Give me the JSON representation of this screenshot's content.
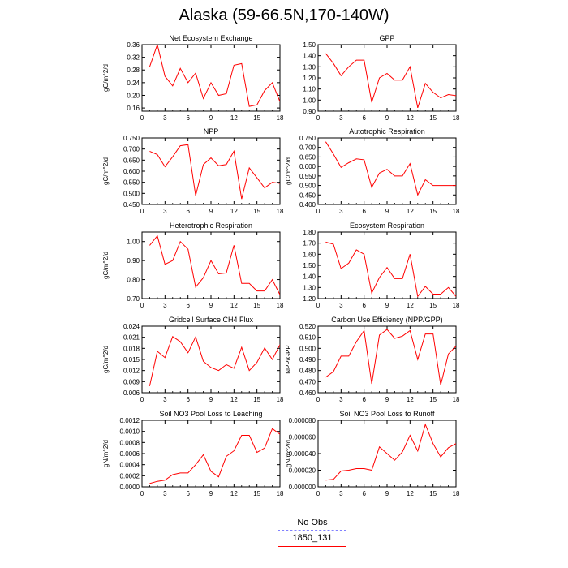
{
  "title": "Alaska (59-66.5N,170-140W)",
  "legend": [
    {
      "label": "No Obs",
      "color": "#8080ff",
      "style": "dashed"
    },
    {
      "label": "1850_131",
      "color": "#ff0000",
      "style": "solid"
    }
  ],
  "line_color": "#ff0000",
  "chart_data": [
    {
      "type": "line",
      "title": "Net Ecosystem Exchange",
      "ylabel": "gC/m^2/d",
      "xlim": [
        0,
        18
      ],
      "xticks": [
        0,
        3,
        6,
        9,
        12,
        15,
        18
      ],
      "ylim": [
        0.15,
        0.36
      ],
      "yticks": [
        "0.16",
        "0.20",
        "0.24",
        "0.28",
        "0.32",
        "0.36"
      ],
      "x": [
        1,
        2,
        3,
        4,
        5,
        6,
        7,
        8,
        9,
        10,
        11,
        12,
        13,
        14,
        15,
        16,
        17,
        18
      ],
      "values": [
        0.29,
        0.36,
        0.26,
        0.23,
        0.285,
        0.24,
        0.27,
        0.19,
        0.24,
        0.2,
        0.205,
        0.295,
        0.3,
        0.165,
        0.17,
        0.215,
        0.24,
        0.18
      ]
    },
    {
      "type": "line",
      "title": "GPP",
      "ylabel": "",
      "xlim": [
        0,
        18
      ],
      "xticks": [
        0,
        3,
        6,
        9,
        12,
        15,
        18
      ],
      "ylim": [
        0.9,
        1.5
      ],
      "yticks": [
        "0.90",
        "1.00",
        "1.10",
        "1.20",
        "1.30",
        "1.40",
        "1.50"
      ],
      "x": [
        1,
        2,
        3,
        4,
        5,
        6,
        7,
        8,
        9,
        10,
        11,
        12,
        13,
        14,
        15,
        16,
        17,
        18
      ],
      "values": [
        1.42,
        1.33,
        1.22,
        1.3,
        1.36,
        1.36,
        0.98,
        1.2,
        1.24,
        1.18,
        1.18,
        1.3,
        0.93,
        1.15,
        1.07,
        1.02,
        1.05,
        1.04
      ]
    },
    {
      "type": "line",
      "title": "NPP",
      "ylabel": "gC/m^2/d",
      "xlim": [
        0,
        18
      ],
      "xticks": [
        0,
        3,
        6,
        9,
        12,
        15,
        18
      ],
      "ylim": [
        0.45,
        0.75
      ],
      "yticks": [
        "0.450",
        "0.500",
        "0.550",
        "0.600",
        "0.650",
        "0.700",
        "0.750"
      ],
      "x": [
        1,
        2,
        3,
        4,
        5,
        6,
        7,
        8,
        9,
        10,
        11,
        12,
        13,
        14,
        15,
        16,
        17,
        18
      ],
      "values": [
        0.69,
        0.675,
        0.62,
        0.665,
        0.715,
        0.72,
        0.49,
        0.63,
        0.66,
        0.625,
        0.63,
        0.69,
        0.475,
        0.615,
        0.57,
        0.525,
        0.55,
        0.545
      ]
    },
    {
      "type": "line",
      "title": "Autotrophic Respiration",
      "ylabel": "gC/m^2/d",
      "xlim": [
        0,
        18
      ],
      "xticks": [
        0,
        3,
        6,
        9,
        12,
        15,
        18
      ],
      "ylim": [
        0.4,
        0.75
      ],
      "yticks": [
        "0.400",
        "0.450",
        "0.500",
        "0.550",
        "0.600",
        "0.650",
        "0.700",
        "0.750"
      ],
      "x": [
        1,
        2,
        3,
        4,
        5,
        6,
        7,
        8,
        9,
        10,
        11,
        12,
        13,
        14,
        15,
        16,
        17,
        18
      ],
      "values": [
        0.73,
        0.665,
        0.595,
        0.62,
        0.64,
        0.635,
        0.49,
        0.565,
        0.585,
        0.55,
        0.55,
        0.615,
        0.45,
        0.53,
        0.5,
        0.5,
        0.5,
        0.5
      ]
    },
    {
      "type": "line",
      "title": "Heterotrophic Respiration",
      "ylabel": "gC/m^2/d",
      "xlim": [
        0,
        18
      ],
      "xticks": [
        0,
        3,
        6,
        9,
        12,
        15,
        18
      ],
      "ylim": [
        0.7,
        1.05
      ],
      "yticks": [
        "0.70",
        "0.80",
        "0.90",
        "1.00"
      ],
      "x": [
        1,
        2,
        3,
        4,
        5,
        6,
        7,
        8,
        9,
        10,
        11,
        12,
        13,
        14,
        15,
        16,
        17,
        18
      ],
      "values": [
        0.98,
        1.03,
        0.88,
        0.9,
        1.0,
        0.96,
        0.76,
        0.81,
        0.9,
        0.83,
        0.835,
        0.98,
        0.78,
        0.78,
        0.74,
        0.74,
        0.8,
        0.72
      ]
    },
    {
      "type": "line",
      "title": "Ecosystem Respiration",
      "ylabel": "",
      "xlim": [
        0,
        18
      ],
      "xticks": [
        0,
        3,
        6,
        9,
        12,
        15,
        18
      ],
      "ylim": [
        1.2,
        1.8
      ],
      "yticks": [
        "1.20",
        "1.30",
        "1.40",
        "1.50",
        "1.60",
        "1.70",
        "1.80"
      ],
      "x": [
        1,
        2,
        3,
        4,
        5,
        6,
        7,
        8,
        9,
        10,
        11,
        12,
        13,
        14,
        15,
        16,
        17,
        18
      ],
      "values": [
        1.71,
        1.69,
        1.47,
        1.52,
        1.64,
        1.6,
        1.25,
        1.39,
        1.48,
        1.38,
        1.38,
        1.6,
        1.22,
        1.31,
        1.24,
        1.24,
        1.3,
        1.22
      ]
    },
    {
      "type": "line",
      "title": "Gridcell Surface CH4 Flux",
      "ylabel": "gC/m^2/d",
      "xlim": [
        0,
        18
      ],
      "xticks": [
        0,
        3,
        6,
        9,
        12,
        15,
        18
      ],
      "ylim": [
        0.006,
        0.024
      ],
      "yticks": [
        "0.006",
        "0.009",
        "0.012",
        "0.015",
        "0.018",
        "0.021",
        "0.024"
      ],
      "x": [
        1,
        2,
        3,
        4,
        5,
        6,
        7,
        8,
        9,
        10,
        11,
        12,
        13,
        14,
        15,
        16,
        17,
        18
      ],
      "values": [
        0.0078,
        0.0172,
        0.0155,
        0.0212,
        0.0198,
        0.0168,
        0.0211,
        0.0145,
        0.0128,
        0.012,
        0.0136,
        0.0126,
        0.0183,
        0.012,
        0.0142,
        0.0181,
        0.015,
        0.019
      ]
    },
    {
      "type": "line",
      "title": "Carbon Use Efficiency (NPP/GPP)",
      "ylabel": "NPP/GPP",
      "xlim": [
        0,
        18
      ],
      "xticks": [
        0,
        3,
        6,
        9,
        12,
        15,
        18
      ],
      "ylim": [
        0.46,
        0.52
      ],
      "yticks": [
        "0.460",
        "0.470",
        "0.480",
        "0.490",
        "0.500",
        "0.510",
        "0.520"
      ],
      "x": [
        1,
        2,
        3,
        4,
        5,
        6,
        7,
        8,
        9,
        10,
        11,
        12,
        13,
        14,
        15,
        16,
        17,
        18
      ],
      "values": [
        0.474,
        0.479,
        0.493,
        0.493,
        0.506,
        0.516,
        0.468,
        0.512,
        0.517,
        0.509,
        0.511,
        0.516,
        0.49,
        0.513,
        0.513,
        0.467,
        0.495,
        0.502
      ]
    },
    {
      "type": "line",
      "title": "Soil NO3 Pool Loss to Leaching",
      "ylabel": "gN/m^2/d",
      "xlim": [
        0,
        18
      ],
      "xticks": [
        0,
        3,
        6,
        9,
        12,
        15,
        18
      ],
      "ylim": [
        0,
        0.0012
      ],
      "yticks": [
        "0.0000",
        "0.0002",
        "0.0004",
        "0.0006",
        "0.0008",
        "0.0010",
        "0.0012"
      ],
      "x": [
        1,
        2,
        3,
        4,
        5,
        6,
        7,
        8,
        9,
        10,
        11,
        12,
        13,
        14,
        15,
        16,
        17,
        18
      ],
      "values": [
        6e-05,
        0.0001,
        0.00012,
        0.00022,
        0.00025,
        0.00025,
        0.0004,
        0.00058,
        0.00028,
        0.00018,
        0.00055,
        0.00065,
        0.00093,
        0.00093,
        0.00062,
        0.0007,
        0.00105,
        0.00095
      ]
    },
    {
      "type": "line",
      "title": "Soil NO3 Pool Loss to Runoff",
      "ylabel": "gN/m^2/d",
      "xlim": [
        0,
        18
      ],
      "xticks": [
        0,
        3,
        6,
        9,
        12,
        15,
        18
      ],
      "ylim": [
        0,
        8e-05
      ],
      "yticks": [
        "0.000000",
        "0.000020",
        "0.000040",
        "0.000060",
        "0.000080"
      ],
      "x": [
        1,
        2,
        3,
        4,
        5,
        6,
        7,
        8,
        9,
        10,
        11,
        12,
        13,
        14,
        15,
        16,
        17,
        18
      ],
      "values": [
        8e-06,
        9e-06,
        1.9e-05,
        2e-05,
        2.2e-05,
        2.2e-05,
        2e-05,
        4.8e-05,
        4e-05,
        3.2e-05,
        4.2e-05,
        6.2e-05,
        4.3e-05,
        7.5e-05,
        5.2e-05,
        3.6e-05,
        4.7e-05,
        5.2e-05
      ]
    }
  ]
}
